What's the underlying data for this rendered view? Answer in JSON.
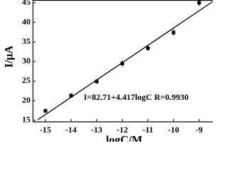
{
  "chart_data": {
    "type": "scatter",
    "x_label": "logC/M",
    "y_label": "I/μA",
    "annotation": "I=82.71+4.417logC R=0.9930",
    "x": [
      -15,
      -14,
      -13,
      -12,
      -11,
      -10,
      -9
    ],
    "values": [
      17.4,
      21.3,
      24.9,
      29.5,
      33.4,
      37.4,
      45.0
    ],
    "errors": [
      0.5,
      0.6,
      0.6,
      0.8,
      0.6,
      0.8,
      0.8
    ],
    "color": "#000000",
    "fit": {
      "x": [
        -15.3,
        -8.3
      ],
      "values": [
        15.13,
        46.05
      ],
      "color": "#000000"
    },
    "xlim": [
      -15.5,
      -8.3
    ],
    "ylim": [
      14.6,
      45.7
    ],
    "xticks": [
      -15,
      -14,
      -13,
      -12,
      -11,
      -10,
      -9
    ],
    "yticks": [
      15,
      20,
      25,
      30,
      35,
      40,
      45
    ]
  }
}
